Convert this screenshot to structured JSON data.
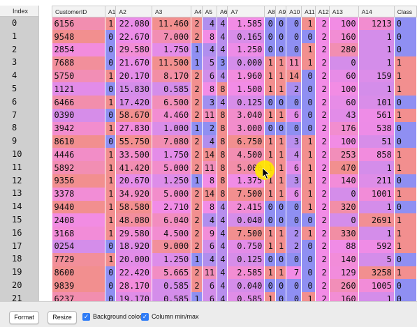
{
  "index_header": "Index",
  "columns": [
    "CustomerID",
    "A1",
    "A2",
    "A3",
    "A4",
    "A5",
    "A6",
    "A7",
    "A8",
    "A9",
    "A10",
    "A11",
    "A12",
    "A13",
    "A14",
    "Class"
  ],
  "rows": [
    {
      "index": "0",
      "cells": [
        "6156",
        "1",
        "22.080",
        "11.460",
        "2",
        "4",
        "4",
        "1.585",
        "0",
        "0",
        "0",
        "1",
        "2",
        "100",
        "1213",
        "0"
      ]
    },
    {
      "index": "1",
      "cells": [
        "9548",
        "0",
        "22.670",
        "7.000",
        "2",
        "8",
        "4",
        "0.165",
        "0",
        "0",
        "0",
        "0",
        "2",
        "160",
        "1",
        "0"
      ]
    },
    {
      "index": "2",
      "cells": [
        "2854",
        "0",
        "29.580",
        "1.750",
        "1",
        "4",
        "4",
        "1.250",
        "0",
        "0",
        "0",
        "1",
        "2",
        "280",
        "1",
        "0"
      ]
    },
    {
      "index": "3",
      "cells": [
        "7688",
        "0",
        "21.670",
        "11.500",
        "1",
        "5",
        "3",
        "0.000",
        "1",
        "1",
        "11",
        "1",
        "2",
        "0",
        "1",
        "1"
      ]
    },
    {
      "index": "4",
      "cells": [
        "5750",
        "1",
        "20.170",
        "8.170",
        "2",
        "6",
        "4",
        "1.960",
        "1",
        "1",
        "14",
        "0",
        "2",
        "60",
        "159",
        "1"
      ]
    },
    {
      "index": "5",
      "cells": [
        "1121",
        "0",
        "15.830",
        "0.585",
        "2",
        "8",
        "8",
        "1.500",
        "1",
        "1",
        "2",
        "0",
        "2",
        "100",
        "1",
        "1"
      ]
    },
    {
      "index": "6",
      "cells": [
        "6466",
        "1",
        "17.420",
        "6.500",
        "2",
        "3",
        "4",
        "0.125",
        "0",
        "0",
        "0",
        "0",
        "2",
        "60",
        "101",
        "0"
      ]
    },
    {
      "index": "7",
      "cells": [
        "0390",
        "0",
        "58.670",
        "4.460",
        "2",
        "11",
        "8",
        "3.040",
        "1",
        "1",
        "6",
        "0",
        "2",
        "43",
        "561",
        "1"
      ]
    },
    {
      "index": "8",
      "cells": [
        "3942",
        "1",
        "27.830",
        "1.000",
        "1",
        "2",
        "8",
        "3.000",
        "0",
        "0",
        "0",
        "0",
        "2",
        "176",
        "538",
        "0"
      ]
    },
    {
      "index": "9",
      "cells": [
        "8610",
        "0",
        "55.750",
        "7.080",
        "2",
        "4",
        "8",
        "6.750",
        "1",
        "1",
        "3",
        "1",
        "2",
        "100",
        "51",
        "0"
      ]
    },
    {
      "index": "10",
      "cells": [
        "4446",
        "1",
        "33.500",
        "1.750",
        "2",
        "14",
        "8",
        "4.500",
        "1",
        "1",
        "4",
        "1",
        "2",
        "253",
        "858",
        "1"
      ]
    },
    {
      "index": "11",
      "cells": [
        "5892",
        "1",
        "41.420",
        "5.000",
        "2",
        "11",
        "8",
        "5.000",
        "1",
        "1",
        "6",
        "1",
        "2",
        "470",
        "1",
        "1"
      ]
    },
    {
      "index": "12",
      "cells": [
        "9356",
        "1",
        "20.670",
        "1.250",
        "1",
        "8",
        "8",
        "1.375",
        "1",
        "1",
        "3",
        "1",
        "2",
        "140",
        "211",
        "0"
      ]
    },
    {
      "index": "13",
      "cells": [
        "3378",
        "1",
        "34.920",
        "5.000",
        "2",
        "14",
        "8",
        "7.500",
        "1",
        "1",
        "6",
        "1",
        "2",
        "0",
        "1001",
        "1"
      ]
    },
    {
      "index": "14",
      "cells": [
        "9440",
        "1",
        "58.580",
        "2.710",
        "2",
        "8",
        "4",
        "2.415",
        "0",
        "0",
        "0",
        "1",
        "2",
        "320",
        "1",
        "0"
      ]
    },
    {
      "index": "15",
      "cells": [
        "2408",
        "1",
        "48.080",
        "6.040",
        "2",
        "4",
        "4",
        "0.040",
        "0",
        "0",
        "0",
        "0",
        "2",
        "0",
        "2691",
        "1"
      ]
    },
    {
      "index": "16",
      "cells": [
        "3168",
        "1",
        "29.580",
        "4.500",
        "2",
        "9",
        "4",
        "7.500",
        "1",
        "1",
        "2",
        "1",
        "2",
        "330",
        "1",
        "1"
      ]
    },
    {
      "index": "17",
      "cells": [
        "0254",
        "0",
        "18.920",
        "9.000",
        "2",
        "6",
        "4",
        "0.750",
        "1",
        "1",
        "2",
        "0",
        "2",
        "88",
        "592",
        "1"
      ]
    },
    {
      "index": "18",
      "cells": [
        "7729",
        "1",
        "20.000",
        "1.250",
        "1",
        "4",
        "4",
        "0.125",
        "0",
        "0",
        "0",
        "0",
        "2",
        "140",
        "5",
        "0"
      ]
    },
    {
      "index": "19",
      "cells": [
        "8600",
        "0",
        "22.420",
        "5.665",
        "2",
        "11",
        "4",
        "2.585",
        "1",
        "1",
        "7",
        "0",
        "2",
        "129",
        "3258",
        "1"
      ]
    },
    {
      "index": "20",
      "cells": [
        "9839",
        "0",
        "28.170",
        "0.585",
        "2",
        "6",
        "4",
        "0.040",
        "0",
        "0",
        "0",
        "0",
        "2",
        "260",
        "1005",
        "0"
      ]
    },
    {
      "index": "21",
      "cells": [
        "6237",
        "0",
        "19.170",
        "0.585",
        "1",
        "6",
        "4",
        "0.585",
        "1",
        "0",
        "0",
        "1",
        "2",
        "160",
        "1",
        "0"
      ]
    }
  ],
  "selected_index_rows": [
    "0",
    "1",
    "2",
    "3",
    "4",
    "5",
    "6",
    "7",
    "8",
    "9",
    "10",
    "11",
    "12",
    "13",
    "14",
    "15",
    "16",
    "17",
    "18",
    "19",
    "20",
    "21"
  ],
  "colors": {
    "low": "#8f8ff2",
    "mid": "#f28ce6",
    "high": "#f28f8f",
    "accent": "#2f7cf6",
    "cursor_halo": "#ffe700"
  },
  "footer": {
    "format_label": "Format",
    "resize_label": "Resize",
    "bg_color_label": "Background color",
    "bg_color_checked": true,
    "minmax_label": "Column min/max",
    "minmax_checked": true
  }
}
